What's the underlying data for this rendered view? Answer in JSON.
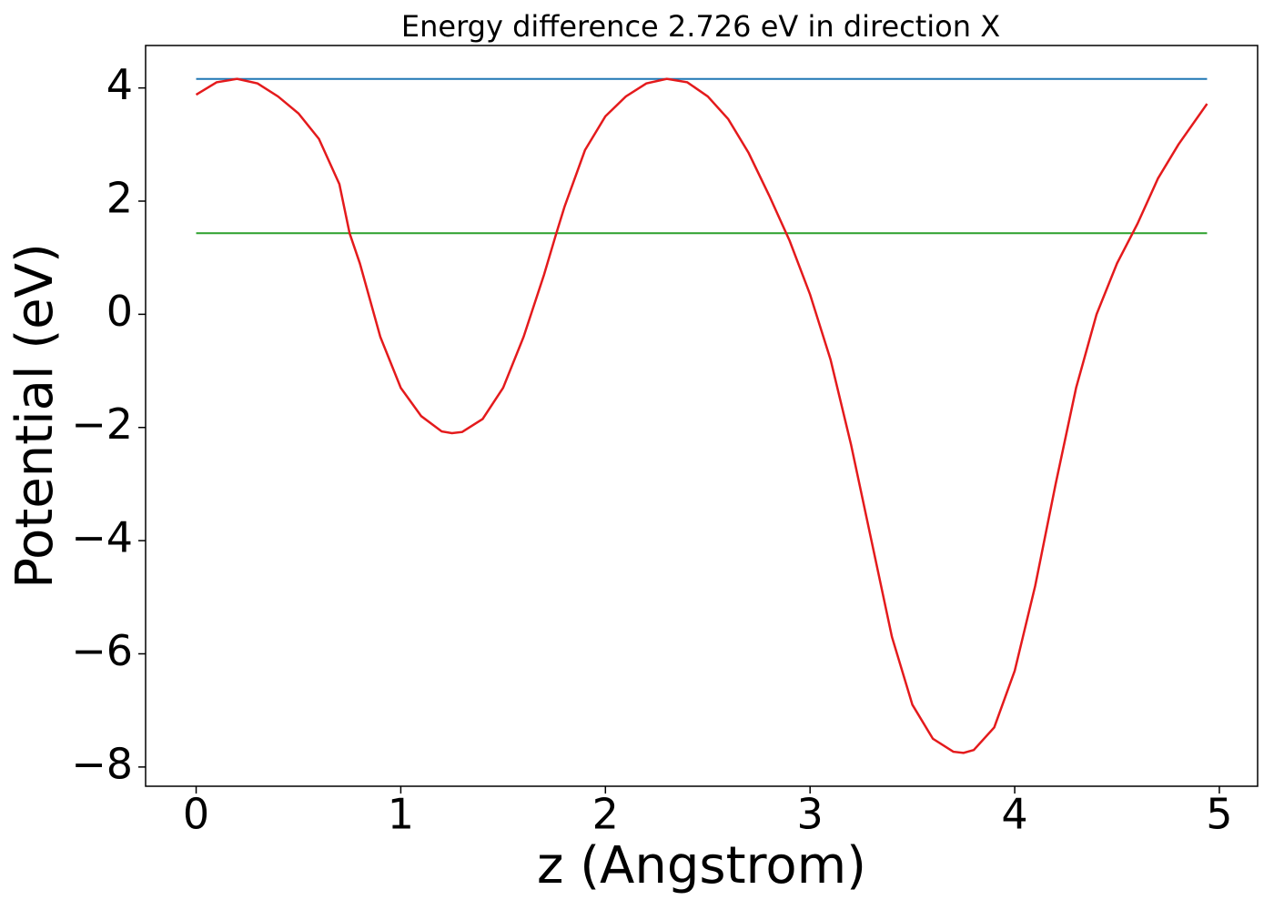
{
  "chart_data": {
    "type": "line",
    "title": "Energy difference 2.726 eV in direction X",
    "xlabel": "z (Angstrom)",
    "ylabel": "Potential (eV)",
    "xlim": [
      -0.247,
      5.187
    ],
    "ylim": [
      -8.34,
      4.75
    ],
    "xticks": [
      0,
      1,
      2,
      3,
      4,
      5
    ],
    "yticks": [
      {
        "value": -8,
        "label": "−8"
      },
      {
        "value": -6,
        "label": "−6"
      },
      {
        "value": -4,
        "label": "−4"
      },
      {
        "value": -2,
        "label": "−2"
      },
      0,
      2,
      4
    ],
    "grid": false,
    "series": [
      {
        "color": "#1f77b4",
        "x": [
          0,
          4.94
        ],
        "values": [
          4.16,
          4.16
        ]
      },
      {
        "color": "#2ca02c",
        "x": [
          0,
          4.94
        ],
        "values": [
          1.434,
          1.434
        ]
      },
      {
        "color": "#e41a1c",
        "x": [
          0,
          0.1,
          0.2,
          0.3,
          0.4,
          0.5,
          0.6,
          0.7,
          0.75,
          0.8,
          0.9,
          1.0,
          1.1,
          1.2,
          1.25,
          1.3,
          1.4,
          1.5,
          1.6,
          1.7,
          1.76,
          1.8,
          1.9,
          2.0,
          2.1,
          2.2,
          2.3,
          2.4,
          2.5,
          2.6,
          2.7,
          2.8,
          2.9,
          3.0,
          3.1,
          3.2,
          3.3,
          3.4,
          3.5,
          3.6,
          3.7,
          3.75,
          3.8,
          3.9,
          4.0,
          4.1,
          4.2,
          4.3,
          4.4,
          4.5,
          4.6,
          4.7,
          4.8,
          4.94
        ],
        "values": [
          3.88,
          4.1,
          4.16,
          4.08,
          3.85,
          3.55,
          3.1,
          2.3,
          1.43,
          0.9,
          -0.4,
          -1.3,
          -1.8,
          -2.07,
          -2.1,
          -2.08,
          -1.85,
          -1.3,
          -0.4,
          0.7,
          1.43,
          1.9,
          2.9,
          3.5,
          3.85,
          4.08,
          4.16,
          4.1,
          3.85,
          3.45,
          2.85,
          2.1,
          1.3,
          0.35,
          -0.8,
          -2.3,
          -4.0,
          -5.7,
          -6.9,
          -7.5,
          -7.73,
          -7.75,
          -7.7,
          -7.3,
          -6.3,
          -4.8,
          -3.0,
          -1.3,
          0.0,
          0.9,
          1.6,
          2.4,
          3.0,
          3.72
        ]
      }
    ]
  }
}
